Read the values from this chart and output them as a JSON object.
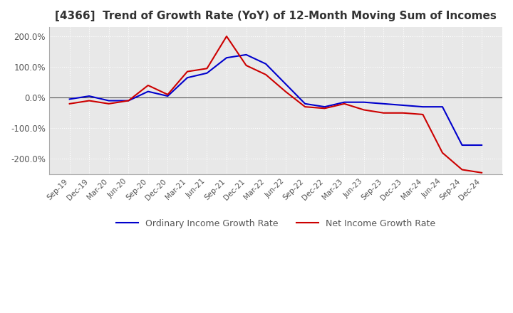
{
  "title": "[4366]  Trend of Growth Rate (YoY) of 12-Month Moving Sum of Incomes",
  "title_fontsize": 11,
  "ylim": [
    -250,
    230
  ],
  "yticks": [
    -200,
    -100,
    0,
    100,
    200
  ],
  "ytick_labels": [
    "-200.0%",
    "-100.0%",
    "0.0%",
    "100.0%",
    "200.0%"
  ],
  "background_color": "#ffffff",
  "plot_bg_color": "#e8e8e8",
  "grid_color": "#ffffff",
  "ordinary_color": "#0000cc",
  "net_color": "#cc0000",
  "legend_labels": [
    "Ordinary Income Growth Rate",
    "Net Income Growth Rate"
  ],
  "x_labels": [
    "Sep-19",
    "Dec-19",
    "Mar-20",
    "Jun-20",
    "Sep-20",
    "Dec-20",
    "Mar-21",
    "Jun-21",
    "Sep-21",
    "Dec-21",
    "Mar-22",
    "Jun-22",
    "Sep-22",
    "Dec-22",
    "Mar-23",
    "Jun-23",
    "Sep-23",
    "Dec-23",
    "Mar-24",
    "Jun-24",
    "Sep-24",
    "Dec-24"
  ],
  "ordinary_income_growth": [
    -5,
    5,
    -10,
    -10,
    20,
    5,
    65,
    80,
    130,
    140,
    110,
    45,
    -20,
    -30,
    -15,
    -15,
    -20,
    -25,
    -30,
    -30,
    -155,
    -155
  ],
  "net_income_growth": [
    -20,
    -10,
    -20,
    -10,
    40,
    10,
    85,
    95,
    200,
    105,
    75,
    20,
    -30,
    -35,
    -20,
    -40,
    -50,
    -50,
    -55,
    -180,
    -235,
    -245
  ]
}
